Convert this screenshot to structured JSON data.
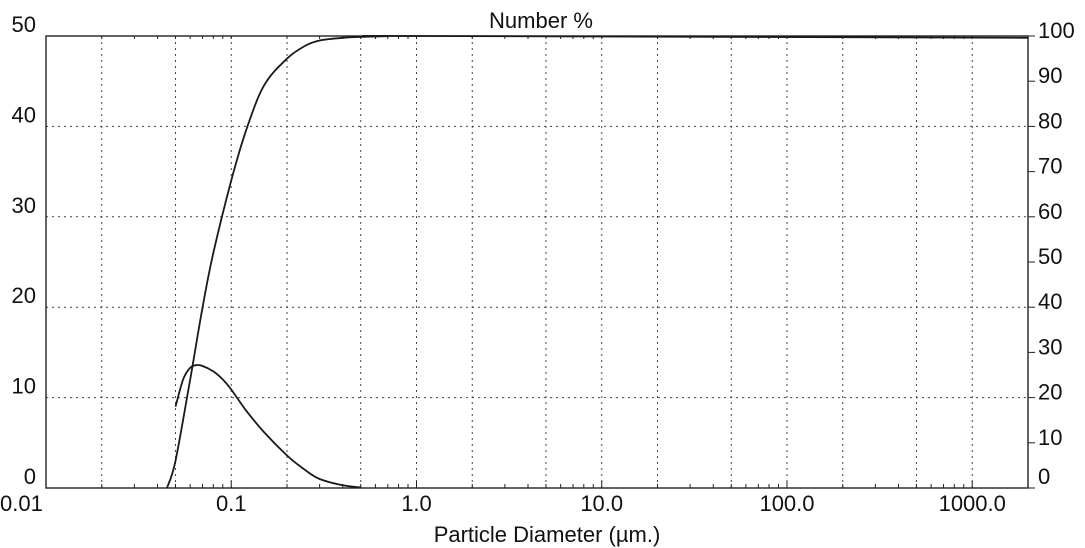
{
  "chart_data": {
    "type": "line",
    "title": "Number %",
    "xlabel": "Particle Diameter (µm.)",
    "x_scale": "log",
    "xlim": [
      0.01,
      2000
    ],
    "x_ticks": [
      0.01,
      0.1,
      1.0,
      10.0,
      100.0,
      1000.0
    ],
    "x_tick_labels": [
      "0.01",
      "0.1",
      "1.0",
      "10.0",
      "100.0",
      "1000.0"
    ],
    "y_left": {
      "lim": [
        0,
        50
      ],
      "ticks": [
        0,
        10,
        20,
        30,
        40,
        50
      ],
      "tick_labels": [
        "0",
        "10",
        "20",
        "30",
        "40",
        "50"
      ]
    },
    "y_right": {
      "lim": [
        0,
        100
      ],
      "ticks": [
        0,
        10,
        20,
        30,
        40,
        50,
        60,
        70,
        80,
        90,
        100
      ],
      "tick_labels": [
        "0",
        "10",
        "20",
        "30",
        "40",
        "50",
        "60",
        "70",
        "80",
        "90",
        "100"
      ]
    },
    "grid": true,
    "series": [
      {
        "axis": "left",
        "x": [
          0.05,
          0.055,
          0.06,
          0.065,
          0.07,
          0.08,
          0.09,
          0.1,
          0.12,
          0.15,
          0.2,
          0.25,
          0.3,
          0.4,
          0.5
        ],
        "y": [
          9.0,
          12.0,
          13.3,
          13.6,
          13.5,
          12.9,
          12.0,
          10.9,
          8.6,
          6.2,
          3.6,
          2.0,
          1.0,
          0.3,
          0.05
        ]
      },
      {
        "axis": "right",
        "x": [
          0.045,
          0.05,
          0.06,
          0.07,
          0.08,
          0.1,
          0.12,
          0.15,
          0.2,
          0.25,
          0.3,
          0.4,
          0.5,
          0.7,
          1.0,
          2000
        ],
        "y": [
          0,
          6,
          24,
          40,
          52,
          68,
          79,
          89,
          95,
          97.8,
          99.0,
          99.6,
          99.8,
          99.95,
          100,
          99.6
        ]
      }
    ]
  }
}
